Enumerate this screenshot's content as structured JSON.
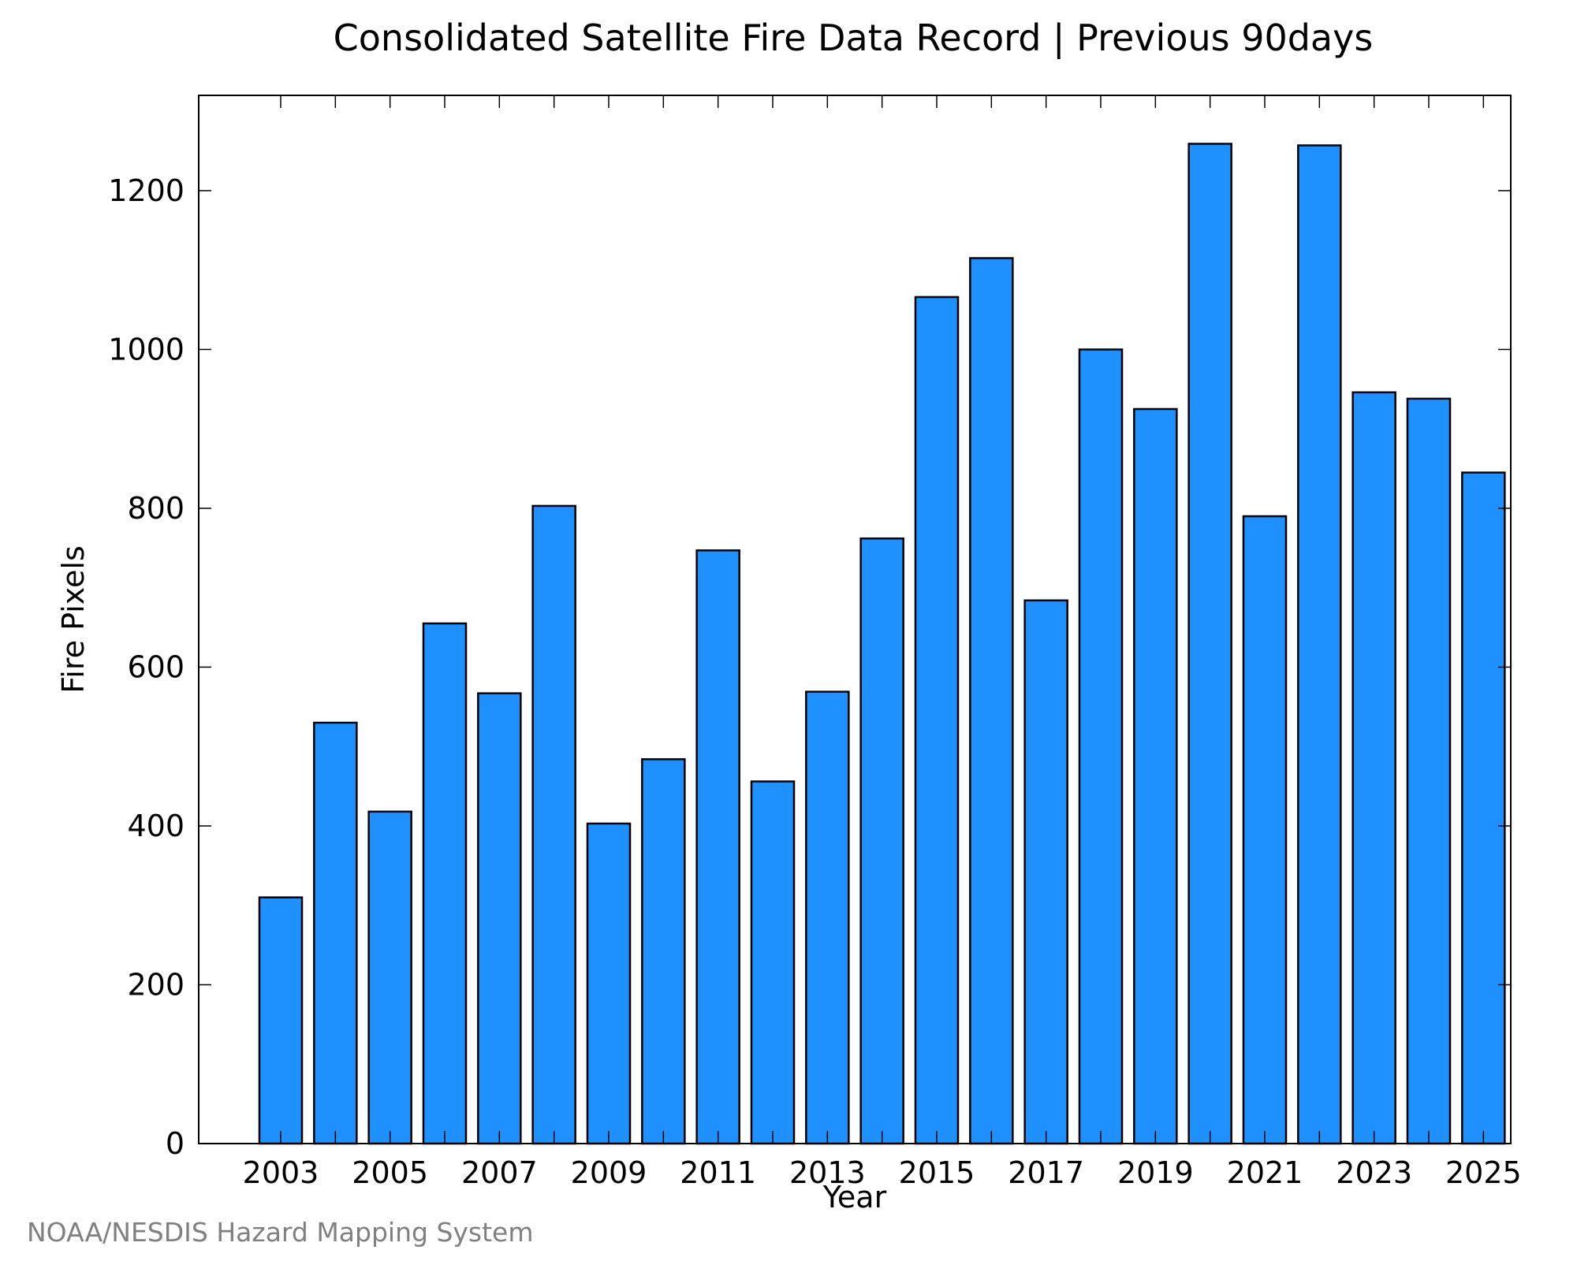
{
  "chart_data": {
    "type": "bar",
    "title": "Consolidated Satellite Fire Data Record | Previous 90days",
    "xlabel": "Year",
    "ylabel": "Fire Pixels",
    "categories": [
      2003,
      2004,
      2005,
      2006,
      2007,
      2008,
      2009,
      2010,
      2011,
      2012,
      2013,
      2014,
      2015,
      2016,
      2017,
      2018,
      2019,
      2020,
      2021,
      2022,
      2023,
      2024,
      2025
    ],
    "values": [
      310,
      530,
      418,
      655,
      567,
      803,
      403,
      484,
      747,
      456,
      569,
      762,
      1066,
      1115,
      684,
      1000,
      925,
      1259,
      790,
      1257,
      946,
      938,
      845
    ],
    "x_ticks": [
      2003,
      2005,
      2007,
      2009,
      2011,
      2013,
      2015,
      2017,
      2019,
      2021,
      2023,
      2025
    ],
    "y_ticks": [
      0,
      200,
      400,
      600,
      800,
      1000,
      1200
    ],
    "xlim": [
      2001.5,
      2025.5
    ],
    "ylim": [
      0,
      1320
    ],
    "grid": false,
    "bar_color": "#1e90ff",
    "edge_color": "#000000"
  },
  "credit": "NOAA/NESDIS Hazard Mapping System"
}
